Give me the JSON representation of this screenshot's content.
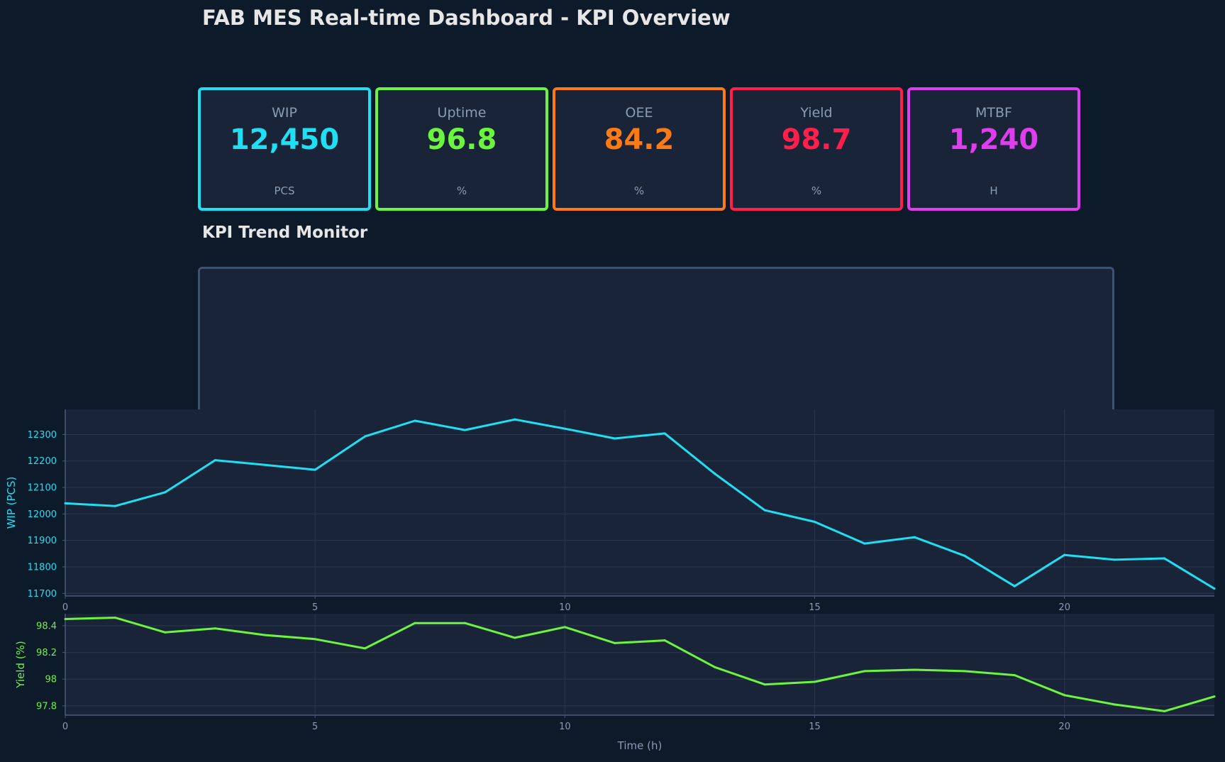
{
  "header": {
    "title": "FAB MES Real-time Dashboard - KPI Overview"
  },
  "kpis": [
    {
      "label": "WIP",
      "value": "12,450",
      "unit": "PCS",
      "color": "#1ee0f5"
    },
    {
      "label": "Uptime",
      "value": "96.8",
      "unit": "%",
      "color": "#6cf53f"
    },
    {
      "label": "OEE",
      "value": "84.2",
      "unit": "%",
      "color": "#ff7a12"
    },
    {
      "label": "Yield",
      "value": "98.7",
      "unit": "%",
      "color": "#ff1f4a"
    },
    {
      "label": "MTBF",
      "value": "1,240",
      "unit": "H",
      "color": "#e03cf0"
    }
  ],
  "trend": {
    "title": "KPI Trend Monitor"
  },
  "chart_data": [
    {
      "type": "line",
      "title": "",
      "xlabel": "",
      "ylabel": "WIP (PCS)",
      "color": "#1ee0f5",
      "xlim": [
        0,
        23
      ],
      "ylim": [
        11690,
        12395
      ],
      "xticks": [
        0,
        5,
        10,
        15,
        20
      ],
      "yticks": [
        11700,
        11800,
        11900,
        12000,
        12100,
        12200,
        12300
      ],
      "grid": true,
      "x": [
        0,
        1,
        2,
        3,
        4,
        5,
        6,
        7,
        8,
        9,
        10,
        11,
        12,
        13,
        14,
        15,
        16,
        17,
        18,
        19,
        20,
        21,
        22,
        23
      ],
      "values": [
        12040,
        12030,
        12082,
        12203,
        12185,
        12167,
        12293,
        12352,
        12317,
        12357,
        12322,
        12285,
        12304,
        12152,
        12014,
        11970,
        11888,
        11912,
        11842,
        11727,
        11845,
        11827,
        11832,
        11718
      ]
    },
    {
      "type": "line",
      "title": "",
      "xlabel": "Time (h)",
      "ylabel": "Yield (%)",
      "color": "#6cf53f",
      "xlim": [
        0,
        23
      ],
      "ylim": [
        97.73,
        98.49
      ],
      "xticks": [
        0,
        5,
        10,
        15,
        20
      ],
      "yticks": [
        97.8,
        98.0,
        98.2,
        98.4
      ],
      "grid": true,
      "x": [
        0,
        1,
        2,
        3,
        4,
        5,
        6,
        7,
        8,
        9,
        10,
        11,
        12,
        13,
        14,
        15,
        16,
        17,
        18,
        19,
        20,
        21,
        22,
        23
      ],
      "values": [
        98.45,
        98.46,
        98.35,
        98.38,
        98.33,
        98.3,
        98.23,
        98.42,
        98.42,
        98.31,
        98.39,
        98.27,
        98.29,
        98.09,
        97.96,
        97.98,
        98.06,
        98.07,
        98.06,
        98.03,
        97.88,
        97.81,
        97.76,
        97.87
      ]
    }
  ]
}
